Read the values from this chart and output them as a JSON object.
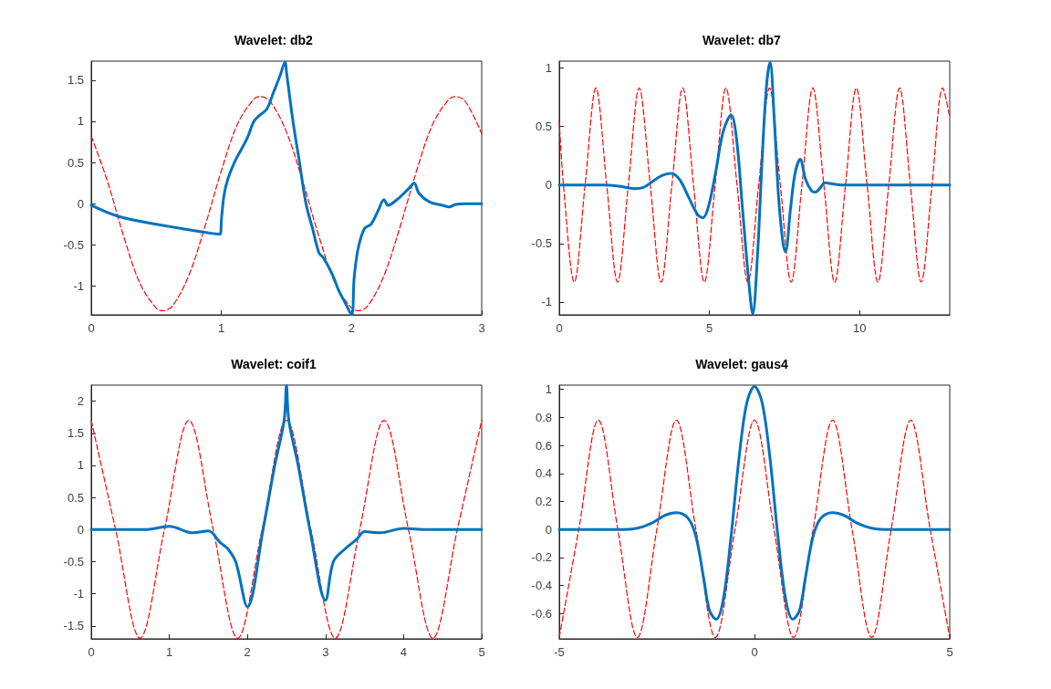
{
  "chart_data": [
    {
      "type": "line",
      "title": "Wavelet: db2",
      "xlim": [
        0,
        3
      ],
      "xticks": [
        0,
        1,
        2,
        3
      ],
      "ylim": [
        -1.35,
        1.73
      ],
      "yticks": [
        -1,
        -0.5,
        0,
        0.5,
        1,
        1.5
      ],
      "grid": false,
      "series": [
        {
          "color": "#ff0000",
          "line_style": "dashed",
          "x": [
            0,
            0.125,
            0.25,
            0.375,
            0.5,
            0.55,
            0.625,
            0.75,
            0.875,
            1,
            1.125,
            1.25,
            1.3,
            1.375,
            1.5,
            1.625,
            1.75,
            1.875,
            2,
            2.05,
            2.125,
            2.25,
            2.375,
            2.5,
            2.625,
            2.75,
            2.8,
            2.875,
            3
          ],
          "values": [
            0.82,
            0.27,
            -0.4,
            -0.97,
            -1.27,
            -1.3,
            -1.24,
            -0.87,
            -0.27,
            0.4,
            0.97,
            1.27,
            1.3,
            1.24,
            0.87,
            0.27,
            -0.4,
            -0.97,
            -1.27,
            -1.3,
            -1.24,
            -0.87,
            -0.27,
            0.4,
            0.97,
            1.27,
            1.3,
            1.24,
            0.85
          ]
        },
        {
          "color": "#0072bd",
          "line_style": "solid",
          "x": [
            0,
            0.2,
            0.5,
            0.99,
            1,
            1.02,
            1.05,
            1.1,
            1.15,
            1.2,
            1.25,
            1.3,
            1.35,
            1.4,
            1.45,
            1.49,
            1.5,
            1.55,
            1.6,
            1.65,
            1.7,
            1.75,
            1.78,
            1.85,
            1.9,
            1.95,
            2,
            2.02,
            2.05,
            2.1,
            2.15,
            2.2,
            2.25,
            2.28,
            2.35,
            2.45,
            2.48,
            2.52,
            2.6,
            2.7,
            2.75,
            2.8,
            2.9,
            3
          ],
          "values": [
            -0.02,
            -0.15,
            -0.25,
            -0.37,
            -0.2,
            0.1,
            0.3,
            0.5,
            0.65,
            0.8,
            1,
            1.08,
            1.15,
            1.35,
            1.55,
            1.72,
            1.6,
            1,
            0.5,
            0,
            -0.3,
            -0.6,
            -0.65,
            -0.85,
            -1.05,
            -1.2,
            -1.35,
            -0.9,
            -0.55,
            -0.3,
            -0.25,
            -0.1,
            0.05,
            -0.02,
            0.05,
            0.2,
            0.25,
            0.12,
            0.02,
            -0.02,
            -0.04,
            -0.01,
            0,
            0
          ]
        }
      ]
    },
    {
      "type": "line",
      "title": "Wavelet: db7",
      "xlim": [
        0,
        13
      ],
      "xticks": [
        0,
        5,
        10
      ],
      "ylim": [
        -1.11,
        1.06
      ],
      "yticks": [
        -1,
        -0.5,
        0,
        0.5,
        1
      ],
      "grid": false,
      "series": [
        {
          "color": "#ff0000",
          "line_style": "dashed",
          "x": [
            0,
            0.14,
            0.5,
            0.86,
            1.22,
            1.58,
            1.94,
            2.3,
            2.66,
            3.03,
            3.39,
            3.75,
            4.11,
            4.47,
            4.83,
            5.19,
            5.55,
            5.92,
            6.28,
            6.64,
            7,
            7.36,
            7.72,
            8.08,
            8.44,
            8.81,
            9.17,
            9.53,
            9.89,
            10.25,
            10.61,
            10.97,
            11.33,
            11.69,
            12.05,
            12.41,
            12.77,
            13
          ],
          "values": [
            0.55,
            0,
            -0.83,
            0,
            0.83,
            0,
            -0.83,
            0,
            0.83,
            0,
            -0.83,
            0,
            0.83,
            0,
            -0.83,
            0,
            0.83,
            0,
            -0.83,
            0,
            0.83,
            0,
            -0.83,
            0,
            0.83,
            0,
            -0.83,
            0,
            0.83,
            0,
            -0.83,
            0,
            0.83,
            0,
            -0.83,
            0,
            0.83,
            0.58
          ]
        },
        {
          "color": "#0072bd",
          "line_style": "solid",
          "x": [
            0,
            1,
            1.5,
            2,
            2.5,
            2.8,
            3.1,
            3.4,
            3.72,
            4,
            4.3,
            4.6,
            4.78,
            4.95,
            5.2,
            5.45,
            5.72,
            5.9,
            6.1,
            6.3,
            6.44,
            6.6,
            6.75,
            6.9,
            7.02,
            7.15,
            7.3,
            7.45,
            7.53,
            7.7,
            7.85,
            8.02,
            8.2,
            8.4,
            8.52,
            8.7,
            8.83,
            9.1,
            9.4,
            10,
            11,
            12,
            13
          ],
          "values": [
            0,
            0,
            0,
            -0.01,
            -0.03,
            -0.02,
            0.03,
            0.08,
            0.1,
            0.05,
            -0.1,
            -0.25,
            -0.28,
            -0.2,
            0.1,
            0.45,
            0.6,
            0.4,
            -0.2,
            -0.8,
            -1.1,
            -0.6,
            0.2,
            0.85,
            1.05,
            0.6,
            -0.1,
            -0.5,
            -0.57,
            -0.2,
            0.1,
            0.22,
            0.05,
            -0.05,
            -0.06,
            -0.02,
            0.02,
            0.01,
            0,
            0,
            0,
            0,
            0
          ]
        }
      ]
    },
    {
      "type": "line",
      "title": "Wavelet: coif1",
      "xlim": [
        0,
        5
      ],
      "xticks": [
        0,
        1,
        2,
        3,
        4,
        5
      ],
      "ylim": [
        -1.7,
        2.25
      ],
      "yticks": [
        -1.5,
        -1,
        -0.5,
        0,
        0.5,
        1,
        1.5,
        2
      ],
      "grid": false,
      "series": [
        {
          "color": "#ff0000",
          "line_style": "dashed",
          "x": [
            0,
            0.3125,
            0.625,
            0.9375,
            1.25,
            1.5625,
            1.875,
            2.1875,
            2.5,
            2.8125,
            3.125,
            3.4375,
            3.75,
            4.0625,
            4.375,
            4.6875,
            5
          ],
          "values": [
            1.7,
            0,
            -1.69,
            0,
            1.7,
            0,
            -1.69,
            0,
            1.7,
            0,
            -1.69,
            0,
            1.7,
            0,
            -1.69,
            0,
            1.7
          ]
        },
        {
          "color": "#0072bd",
          "line_style": "solid",
          "x": [
            0,
            0.5,
            0.7,
            1,
            1.3,
            1.5,
            1.65,
            1.75,
            1.85,
            2,
            2.2,
            2.35,
            2.47,
            2.5,
            2.53,
            2.65,
            2.8,
            3,
            3.1,
            3.25,
            3.4,
            3.5,
            3.7,
            4,
            4.3,
            5
          ],
          "values": [
            0,
            0,
            0,
            0.05,
            -0.05,
            -0.02,
            -0.2,
            -0.3,
            -0.5,
            -1.2,
            0,
            1,
            1.7,
            2.24,
            1.7,
            1,
            0,
            -1.1,
            -0.5,
            -0.3,
            -0.15,
            -0.03,
            -0.05,
            0.02,
            0,
            0
          ]
        }
      ]
    },
    {
      "type": "line",
      "title": "Wavelet: gaus4",
      "xlim": [
        -5,
        5
      ],
      "xticks": [
        -5,
        0,
        5
      ],
      "ylim": [
        -0.78,
        1.03
      ],
      "yticks": [
        -0.6,
        -0.4,
        -0.2,
        0,
        0.2,
        0.4,
        0.6,
        0.8,
        1
      ],
      "grid": false,
      "series": [
        {
          "color": "#ff0000",
          "line_style": "dashed",
          "x": [
            -5,
            -4.5,
            -4,
            -3.5,
            -3,
            -2.5,
            -2,
            -1.5,
            -1,
            -0.5,
            0,
            0.5,
            1,
            1.5,
            2,
            2.5,
            3,
            3.5,
            4,
            4.5,
            5
          ],
          "values": [
            -0.77,
            0,
            0.78,
            0,
            -0.77,
            0,
            0.78,
            0,
            -0.77,
            0,
            0.78,
            0,
            -0.77,
            0,
            0.78,
            0,
            -0.77,
            0,
            0.78,
            0,
            -0.77
          ]
        },
        {
          "color": "#0072bd",
          "line_style": "solid",
          "x": [
            -5,
            -4,
            -3.5,
            -3,
            -2.6,
            -2.3,
            -2,
            -1.7,
            -1.5,
            -1.3,
            -1.15,
            -0.98,
            -0.8,
            -0.6,
            -0.4,
            -0.2,
            0,
            0.2,
            0.4,
            0.6,
            0.8,
            0.98,
            1.15,
            1.3,
            1.5,
            1.7,
            2,
            2.3,
            2.6,
            3,
            3.5,
            4,
            5
          ],
          "values": [
            0,
            0,
            0,
            0.01,
            0.05,
            0.1,
            0.12,
            0.08,
            -0.05,
            -0.35,
            -0.58,
            -0.64,
            -0.5,
            -0.05,
            0.5,
            0.9,
            1.02,
            0.9,
            0.5,
            -0.05,
            -0.5,
            -0.64,
            -0.58,
            -0.35,
            -0.05,
            0.08,
            0.12,
            0.1,
            0.05,
            0.01,
            0,
            0,
            0
          ]
        }
      ]
    }
  ]
}
